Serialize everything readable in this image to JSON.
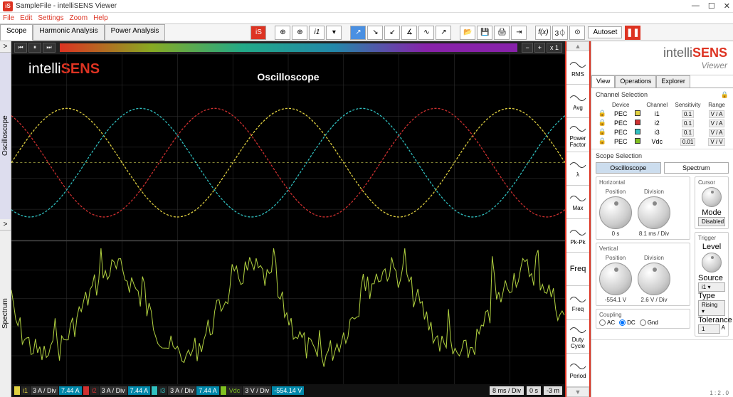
{
  "titlebar": {
    "text": "SampleFile - intelliSENS Viewer"
  },
  "menu": {
    "file": "File",
    "edit": "Edit",
    "settings": "Settings",
    "zoom": "Zoom",
    "help": "Help"
  },
  "toolbar": {
    "tabs": [
      {
        "label": "Scope",
        "active": true
      },
      {
        "label": "Harmonic Analysis"
      },
      {
        "label": "Power Analysis"
      }
    ],
    "autoset": "Autoset"
  },
  "leftstrip": {
    "top": "Oscilloscope",
    "bot": "Spectrum"
  },
  "scope": {
    "title": "Oscilloscope",
    "zoom": "x 1",
    "logo_prefix": "intelli",
    "logo_suffix": "SENS",
    "grid_cols": 10,
    "background": "#000000",
    "grid_color": "#333333",
    "channels_footer": [
      {
        "name": "i1",
        "div": "3 A / Div",
        "val": "7.44 A",
        "color": "#e0d040"
      },
      {
        "name": "i2",
        "div": "3 A / Div",
        "val": "7.44 A",
        "color": "#d03030"
      },
      {
        "name": "i3",
        "div": "3 A / Div",
        "val": "7.44 A",
        "color": "#30c0c0"
      },
      {
        "name": "Vdc",
        "div": "3 V / Div",
        "val": "-554.14 V",
        "color": "#80c020"
      }
    ],
    "footer_right": [
      "8 ms / Div",
      "0 s",
      "-3 m"
    ],
    "sine_series": [
      {
        "color": "#e0d040",
        "phase": 0
      },
      {
        "color": "#d03030",
        "phase": 120
      },
      {
        "color": "#30c0c0",
        "phase": 240
      }
    ],
    "spectrum_color": "#b0d040"
  },
  "measurements": [
    {
      "label": "RMS"
    },
    {
      "label": "Avg"
    },
    {
      "label": "Power Factor"
    },
    {
      "label": "λ"
    },
    {
      "label": "Max"
    },
    {
      "label": "Pk-Pk"
    },
    {
      "label": "Freq",
      "big": true
    },
    {
      "label": "Freq"
    },
    {
      "label": "Duty Cycle"
    },
    {
      "label": "Period"
    }
  ],
  "rightpanel": {
    "logo_prefix": "intelli",
    "logo_suffix": "SENS",
    "logo_sub": "Viewer",
    "tabs": [
      {
        "label": "View",
        "active": true
      },
      {
        "label": "Operations"
      },
      {
        "label": "Explorer"
      }
    ],
    "channel_sel_hdr": "Channel Selection",
    "ch_cols": {
      "device": "Device",
      "channel": "Channel",
      "sensitivity": "Sensitivity",
      "range": "Range"
    },
    "channels": [
      {
        "device": "PEC",
        "name": "i1",
        "color": "#e0d040",
        "sens": "0.1",
        "unit": "V / A"
      },
      {
        "device": "PEC",
        "name": "i2",
        "color": "#d03030",
        "sens": "0.1",
        "unit": "V / A"
      },
      {
        "device": "PEC",
        "name": "i3",
        "color": "#30c0c0",
        "sens": "0.1",
        "unit": "V / A"
      },
      {
        "device": "PEC",
        "name": "Vdc",
        "color": "#80c020",
        "sens": "0.01",
        "unit": "V / V"
      }
    ],
    "scope_sel_hdr": "Scope Selection",
    "scope_btns": {
      "osc": "Oscilloscope",
      "spec": "Spectrum"
    },
    "horizontal": {
      "hdr": "Horizontal",
      "pos_label": "Position",
      "div_label": "Division",
      "pos": "0 s",
      "div": "8.1 ms / Div"
    },
    "cursor": {
      "hdr": "Cursor",
      "mode_label": "Mode",
      "mode": "Disabled"
    },
    "vertical": {
      "hdr": "Vertical",
      "pos_label": "Position",
      "div_label": "Division",
      "pos": "-554.1 V",
      "div": "2.6 V / Div"
    },
    "trigger": {
      "hdr": "Trigger",
      "level_label": "Level",
      "source_label": "Source",
      "source": "i1 ▾",
      "type_label": "Type",
      "type": "Rising ▾",
      "tol_label": "Tolerance",
      "tol": "1",
      "tol_unit": "A"
    },
    "coupling": {
      "hdr": "Coupling",
      "ac": "AC",
      "dc": "DC",
      "gnd": "Gnd"
    }
  },
  "status": "1 : 2 . 0"
}
